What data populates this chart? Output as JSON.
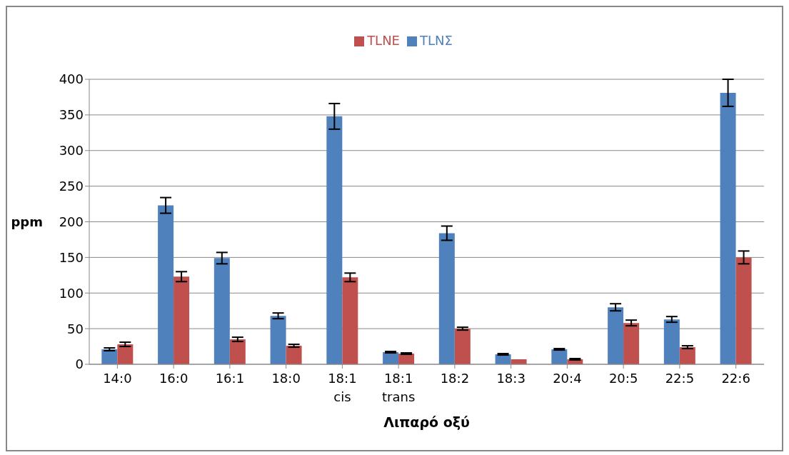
{
  "chart_data": {
    "type": "bar",
    "xlabel": "Λιπαρό οξύ",
    "ylabel": "ppm",
    "categories": [
      "14:0",
      "16:0",
      "16:1",
      "18:0",
      "18:1 cis",
      "18:1 trans",
      "18:2",
      "18:3",
      "20:4",
      "20:5",
      "22:5",
      "22:6"
    ],
    "series": [
      {
        "name": "TLNΣ",
        "color": "#4f81bd",
        "values": [
          21,
          223,
          149,
          68,
          348,
          17,
          184,
          14,
          21,
          80,
          63,
          381
        ],
        "errors": [
          2,
          11,
          8,
          4,
          18,
          1,
          10,
          1,
          1,
          5,
          4,
          19
        ]
      },
      {
        "name": "TLNE",
        "color": "#c0504d",
        "values": [
          28,
          123,
          35,
          26,
          122,
          15,
          50,
          7,
          7,
          58,
          24,
          150
        ],
        "errors": [
          3,
          7,
          3,
          2,
          6,
          1,
          2,
          null,
          1,
          4,
          2,
          9
        ]
      }
    ],
    "ylim": [
      0,
      400
    ],
    "yticks": [
      0,
      50,
      100,
      150,
      200,
      250,
      300,
      350,
      400
    ],
    "grid": "y",
    "legend": "top"
  }
}
